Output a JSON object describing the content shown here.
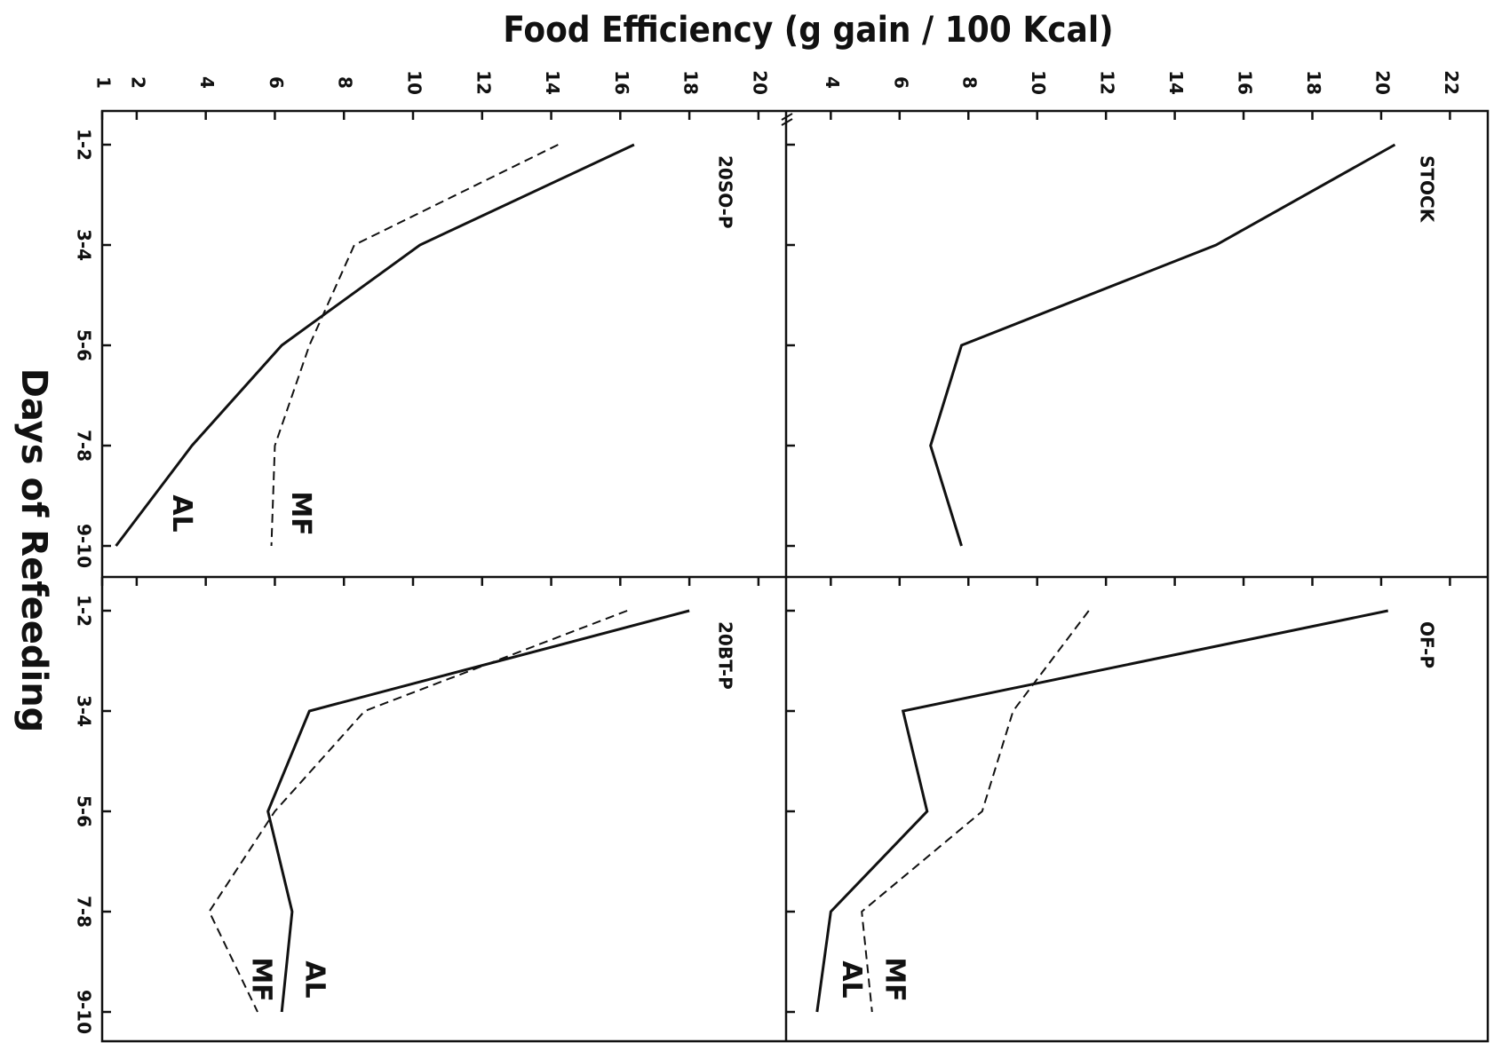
{
  "figure": {
    "xlabel": "Food Efficiency (g gain / 100 Kcal)",
    "ylabel": "Days of Refeeding"
  },
  "chart_data": [
    {
      "type": "line",
      "title": "20SO-P",
      "categories": [
        "1-2",
        "3-4",
        "5-6",
        "7-8",
        "9-10"
      ],
      "xlim": [
        1,
        20.8
      ],
      "xticks": [
        1,
        2,
        4,
        6,
        8,
        10,
        12,
        14,
        16,
        18,
        20
      ],
      "series": [
        {
          "name": "AL",
          "color": "#111111",
          "dash": false,
          "values": [
            16.4,
            10.2,
            6.2,
            3.6,
            1.4
          ]
        },
        {
          "name": "MF",
          "color": "#111111",
          "dash": true,
          "values": [
            14.2,
            8.3,
            7.0,
            6.0,
            5.9
          ]
        }
      ]
    },
    {
      "type": "line",
      "title": "20BT-P",
      "categories": [
        "1-2",
        "3-4",
        "5-6",
        "7-8",
        "9-10"
      ],
      "xlim": [
        1,
        20.8
      ],
      "xticks": [
        1,
        2,
        4,
        6,
        8,
        10,
        12,
        14,
        16,
        18,
        20
      ],
      "series": [
        {
          "name": "AL",
          "color": "#111111",
          "dash": false,
          "values": [
            18.0,
            7.0,
            5.8,
            6.5,
            6.2
          ]
        },
        {
          "name": "MF",
          "color": "#111111",
          "dash": true,
          "values": [
            16.2,
            8.6,
            6.0,
            4.1,
            5.5
          ]
        }
      ]
    },
    {
      "type": "line",
      "title": "STOCK",
      "categories": [
        "1-2",
        "3-4",
        "5-6",
        "7-8",
        "9-10"
      ],
      "xlim": [
        2.7,
        23.1
      ],
      "xticks": [
        4,
        6,
        8,
        10,
        12,
        14,
        16,
        18,
        20,
        22
      ],
      "series": [
        {
          "color": "#111111",
          "dash": false,
          "values": [
            20.4,
            15.2,
            7.8,
            6.9,
            7.8
          ]
        }
      ]
    },
    {
      "type": "line",
      "title": "OF-P",
      "categories": [
        "1-2",
        "3-4",
        "5-6",
        "7-8",
        "9-10"
      ],
      "xlim": [
        2.7,
        23.1
      ],
      "xticks": [
        4,
        6,
        8,
        10,
        12,
        14,
        16,
        18,
        20,
        22
      ],
      "series": [
        {
          "name": "AL",
          "color": "#111111",
          "dash": false,
          "values": [
            20.2,
            6.1,
            6.8,
            4.0,
            3.6
          ]
        },
        {
          "name": "MF",
          "color": "#111111",
          "dash": true,
          "values": [
            11.5,
            9.3,
            8.4,
            4.9,
            5.2
          ]
        }
      ]
    }
  ]
}
